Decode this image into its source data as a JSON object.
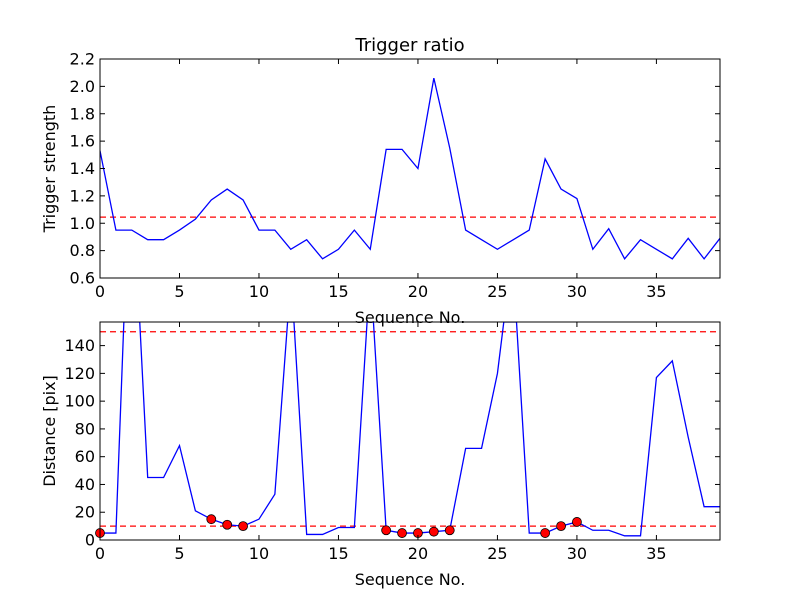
{
  "chart_data": [
    {
      "type": "line",
      "title": "Trigger ratio",
      "xlabel": "Sequence No.",
      "ylabel": "Trigger strength",
      "xlim": [
        0,
        39
      ],
      "ylim": [
        0.6,
        2.2
      ],
      "xticks": [
        0,
        5,
        10,
        15,
        20,
        25,
        30,
        35
      ],
      "yticks": [
        0.6,
        0.8,
        1.0,
        1.2,
        1.4,
        1.6,
        1.8,
        2.0,
        2.2
      ],
      "ytick_labels": [
        "0.6",
        "0.8",
        "1.0",
        "1.2",
        "1.4",
        "1.6",
        "1.8",
        "2.0",
        "2.2"
      ],
      "grid": false,
      "series": [
        {
          "color": "#0000ff",
          "x": [
            0,
            1,
            2,
            3,
            4,
            5,
            6,
            7,
            8,
            9,
            10,
            11,
            12,
            13,
            14,
            15,
            16,
            17,
            18,
            19,
            20,
            21,
            22,
            23,
            24,
            25,
            26,
            27,
            28,
            29,
            30,
            31,
            32,
            33,
            34,
            35,
            36,
            37,
            38,
            39
          ],
          "values": [
            1.53,
            0.95,
            0.95,
            0.88,
            0.88,
            0.95,
            1.03,
            1.17,
            1.25,
            1.17,
            0.95,
            0.95,
            0.81,
            0.88,
            0.74,
            0.81,
            0.95,
            0.81,
            1.54,
            1.54,
            1.4,
            2.06,
            1.55,
            0.95,
            0.88,
            0.81,
            0.88,
            0.95,
            1.47,
            1.25,
            1.18,
            0.81,
            0.96,
            0.74,
            0.88,
            0.81,
            0.74,
            0.89,
            0.74,
            0.89
          ]
        }
      ],
      "hlines": [
        {
          "y": 1.045,
          "color": "#ff0000",
          "style": "dashed"
        }
      ]
    },
    {
      "type": "line",
      "title": "",
      "xlabel": "Sequence No.",
      "ylabel": "Distance [pix]",
      "xlim": [
        0,
        39
      ],
      "ylim": [
        0,
        157
      ],
      "xticks": [
        0,
        5,
        10,
        15,
        20,
        25,
        30,
        35
      ],
      "yticks": [
        0,
        20,
        40,
        60,
        80,
        100,
        120,
        140
      ],
      "grid": false,
      "series": [
        {
          "color": "#0000ff",
          "x": [
            0,
            1,
            1.5,
            2.5,
            3,
            4,
            5,
            6,
            7,
            8,
            9,
            10,
            11,
            11.8,
            12.2,
            13,
            14,
            15,
            16,
            16.8,
            17.2,
            18,
            19,
            20,
            21,
            22,
            23,
            24,
            25,
            25.4,
            26.2,
            27,
            28,
            29,
            30,
            31,
            32,
            33,
            34,
            35,
            36,
            37,
            38,
            39
          ],
          "values": [
            5,
            5,
            157,
            157,
            45,
            45,
            68,
            21,
            15,
            11,
            10,
            15,
            33,
            157,
            157,
            4,
            4,
            9,
            9,
            157,
            157,
            7,
            5,
            5,
            6,
            7,
            66,
            66,
            120,
            157,
            157,
            5,
            5,
            10,
            13,
            7,
            7,
            3,
            3,
            117,
            129,
            74,
            24,
            24
          ]
        },
        {
          "color": "#ff0000",
          "marker": "circle",
          "x": [
            0,
            7,
            8,
            9,
            18,
            19,
            20,
            21,
            22,
            28,
            29,
            30
          ],
          "values": [
            5,
            15,
            11,
            10,
            7,
            5,
            5,
            6,
            7,
            5,
            10,
            13
          ]
        }
      ],
      "hlines": [
        {
          "y": 150,
          "color": "#ff0000",
          "style": "dashed"
        },
        {
          "y": 10,
          "color": "#ff0000",
          "style": "dashed"
        }
      ]
    }
  ]
}
